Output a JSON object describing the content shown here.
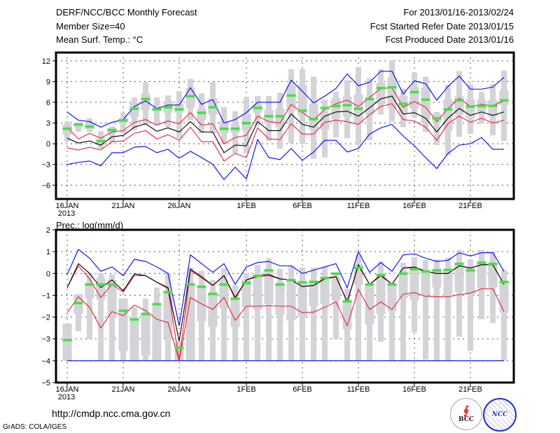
{
  "header": {
    "title": "DERF/NCC/BCC Monthly Forecast",
    "member_size": "Member Size=40",
    "variable": "Mean Surf. Temp.: °C",
    "period": "For 2013/01/16-2013/02/24",
    "started": "Fcst Started Refer Date 2013/01/15",
    "produced": "Fcst Produced Date 2013/01/16"
  },
  "footer": {
    "url": "http://cmdp.ncc.cma.gov.cn",
    "grads": "GrADS: COLA/IGES",
    "logo_bcc": "BCC",
    "logo_ncc": "NCC"
  },
  "colors": {
    "box": "#d3d3d8",
    "obs": "#44e044",
    "spread": "#e8203c",
    "extreme": "#0000ff",
    "mean": "#000000"
  },
  "chart_data": [
    {
      "type": "line",
      "title": "Mean Surf. Temp.: °C",
      "x_start": "16JAN 2013",
      "n_days": 40,
      "xticks": [
        {
          "day": 0,
          "label": "16JAN",
          "sub": "2013"
        },
        {
          "day": 5,
          "label": "21JAN"
        },
        {
          "day": 10,
          "label": "26JAN"
        },
        {
          "day": 16,
          "label": "1FEB"
        },
        {
          "day": 21,
          "label": "6FEB"
        },
        {
          "day": 26,
          "label": "11FEB"
        },
        {
          "day": 31,
          "label": "16FEB"
        },
        {
          "day": 36,
          "label": "21FEB"
        }
      ],
      "yticks": [
        12,
        9,
        6,
        3,
        0,
        -3,
        -6
      ],
      "ylim": [
        -8,
        13.2
      ],
      "grid": true,
      "series": [
        {
          "name": "max",
          "color": "#0000ff",
          "values": [
            4.6,
            3.4,
            3.2,
            2.4,
            3.1,
            3.5,
            5.4,
            6.2,
            5.1,
            5.6,
            5.6,
            8.1,
            5.7,
            6.4,
            3.0,
            3.5,
            4.5,
            6.0,
            6.0,
            6.0,
            9.2,
            7.6,
            5.9,
            6.9,
            8.0,
            10.1,
            8.4,
            8.9,
            10.5,
            10.5,
            7.2,
            9.1,
            8.7,
            6.3,
            8.3,
            9.8,
            7.9,
            7.9,
            8.2,
            9.6
          ]
        },
        {
          "name": "upper",
          "color": "#e8203c",
          "values": [
            2.4,
            0.7,
            1.5,
            0.8,
            1.7,
            1.9,
            3.1,
            3.5,
            2.7,
            3.3,
            2.9,
            4.5,
            2.7,
            2.9,
            0.0,
            0.9,
            1.2,
            4.0,
            3.2,
            3.0,
            5.7,
            4.5,
            3.4,
            5.0,
            5.8,
            6.3,
            5.4,
            6.7,
            8.0,
            8.1,
            5.3,
            6.1,
            5.3,
            3.2,
            5.1,
            6.6,
            5.4,
            5.7,
            5.5,
            6.2
          ]
        },
        {
          "name": "mean",
          "color": "#000000",
          "values": [
            0.8,
            0.1,
            0.4,
            -0.2,
            1.0,
            1.2,
            2.4,
            2.9,
            1.8,
            2.3,
            1.7,
            3.2,
            1.7,
            1.7,
            -1.3,
            -0.2,
            -0.3,
            3.2,
            1.9,
            1.9,
            4.3,
            2.8,
            2.4,
            4.0,
            4.6,
            4.7,
            4.0,
            5.2,
            6.5,
            6.9,
            4.3,
            4.5,
            3.7,
            1.7,
            3.7,
            5.1,
            4.1,
            4.6,
            4.1,
            4.6
          ]
        },
        {
          "name": "lower",
          "color": "#e8203c",
          "values": [
            -0.6,
            -0.9,
            -0.5,
            -0.9,
            0.3,
            0.4,
            1.5,
            1.9,
            0.7,
            1.3,
            0.5,
            2.4,
            0.3,
            0.3,
            -2.5,
            -1.4,
            -2.0,
            2.3,
            0.7,
            0.6,
            2.9,
            1.4,
            1.4,
            3.1,
            3.4,
            3.2,
            2.8,
            4.2,
            5.4,
            5.8,
            3.5,
            3.3,
            2.4,
            0.5,
            2.9,
            4.0,
            3.1,
            3.7,
            3.0,
            3.4
          ]
        },
        {
          "name": "min",
          "color": "#0000ff",
          "values": [
            -3.0,
            -2.7,
            -2.5,
            -3.2,
            -1.3,
            -1.3,
            -0.5,
            -0.4,
            -1.3,
            -0.8,
            -2.1,
            -1.1,
            -2.0,
            -3.0,
            -5.2,
            -3.4,
            -5.1,
            0.6,
            -2.0,
            -2.3,
            -0.7,
            -2.4,
            -1.2,
            0.5,
            0.5,
            -1.2,
            -0.7,
            1.4,
            2.3,
            2.8,
            1.1,
            -0.3,
            -2.0,
            -3.6,
            -1.4,
            -0.2,
            0.0,
            0.9,
            -0.8,
            -0.8
          ]
        }
      ],
      "obs": [
        2.2,
        2.8,
        2.5,
        0.4,
        2.0,
        3.4,
        5.1,
        6.5,
        5.0,
        5.3,
        5.0,
        6.9,
        4.5,
        5.3,
        2.2,
        2.2,
        3.0,
        5.2,
        4.0,
        4.0,
        7.0,
        4.8,
        3.6,
        5.2,
        5.5,
        5.6,
        5.1,
        6.5,
        8.1,
        8.2,
        5.8,
        7.5,
        6.4,
        3.7,
        5.0,
        6.3,
        5.4,
        5.5,
        5.5,
        6.3
      ],
      "box_outer": [
        [
          0.4,
          3.2
        ],
        [
          1.7,
          3.1
        ],
        [
          1.7,
          3.7
        ],
        [
          -0.7,
          1.8
        ],
        [
          0.2,
          2.5
        ],
        [
          1.5,
          4.5
        ],
        [
          2.0,
          6.7
        ],
        [
          2.7,
          8.9
        ],
        [
          2.7,
          6.7
        ],
        [
          2.4,
          7.0
        ],
        [
          0.8,
          7.6
        ],
        [
          3.4,
          9.4
        ],
        [
          1.5,
          7.3
        ],
        [
          1.5,
          8.9
        ],
        [
          -0.1,
          5.3
        ],
        [
          -1.4,
          4.7
        ],
        [
          -1.4,
          6.8
        ],
        [
          2.7,
          6.9
        ],
        [
          0.4,
          6.9
        ],
        [
          -0.7,
          7.4
        ],
        [
          0.1,
          10.8
        ],
        [
          0.0,
          10.8
        ],
        [
          -2.2,
          9.7
        ],
        [
          -2.0,
          6.4
        ],
        [
          0.9,
          7.5
        ],
        [
          0.8,
          9.2
        ],
        [
          -0.2,
          11.1
        ],
        [
          0.5,
          9.5
        ],
        [
          4.2,
          10.8
        ],
        [
          3.2,
          12.1
        ],
        [
          2.4,
          8.0
        ],
        [
          3.8,
          10.3
        ],
        [
          1.7,
          9.7
        ],
        [
          -0.2,
          4.6
        ],
        [
          -1.7,
          8.5
        ],
        [
          1.0,
          10.5
        ],
        [
          1.4,
          8.6
        ],
        [
          2.9,
          7.5
        ],
        [
          1.2,
          8.6
        ],
        [
          0.4,
          10.6
        ]
      ],
      "box_inner": [
        [
          1.3,
          2.8
        ],
        [
          2.4,
          3.0
        ],
        [
          2.1,
          3.1
        ],
        [
          -0.2,
          0.7
        ],
        [
          1.5,
          2.3
        ],
        [
          3.0,
          3.7
        ],
        [
          3.9,
          5.9
        ],
        [
          4.9,
          7.3
        ],
        [
          4.7,
          5.3
        ],
        [
          4.5,
          6.2
        ],
        [
          4.5,
          5.7
        ],
        [
          5.2,
          8.1
        ],
        [
          3.4,
          5.1
        ],
        [
          4.2,
          6.6
        ],
        [
          1.5,
          3.2
        ],
        [
          1.6,
          2.8
        ],
        [
          1.9,
          4.3
        ],
        [
          4.5,
          5.7
        ],
        [
          2.9,
          4.9
        ],
        [
          2.4,
          5.1
        ],
        [
          4.7,
          8.5
        ],
        [
          4.1,
          8.5
        ],
        [
          2.0,
          5.8
        ],
        [
          2.0,
          4.4
        ],
        [
          3.6,
          6.6
        ],
        [
          3.9,
          6.8
        ],
        [
          3.0,
          7.1
        ],
        [
          4.2,
          6.3
        ],
        [
          5.8,
          8.8
        ],
        [
          5.1,
          9.6
        ],
        [
          4.4,
          6.9
        ],
        [
          5.1,
          8.3
        ],
        [
          3.0,
          8.1
        ],
        [
          3.1,
          4.3
        ],
        [
          1.9,
          6.4
        ],
        [
          4.2,
          6.9
        ],
        [
          3.7,
          6.4
        ],
        [
          4.6,
          6.4
        ],
        [
          3.9,
          6.3
        ],
        [
          5.6,
          7.8
        ]
      ]
    },
    {
      "type": "line",
      "title": "Prec.: log(mm/d)",
      "x_start": "16JAN 2013",
      "n_days": 40,
      "xticks": [
        {
          "day": 0,
          "label": "16JAN",
          "sub": "2013"
        },
        {
          "day": 5,
          "label": "21JAN"
        },
        {
          "day": 10,
          "label": "26JAN"
        },
        {
          "day": 16,
          "label": "1FEB"
        },
        {
          "day": 21,
          "label": "6FEB"
        },
        {
          "day": 26,
          "label": "11FEB"
        },
        {
          "day": 31,
          "label": "16FEB"
        },
        {
          "day": 36,
          "label": "21FEB"
        }
      ],
      "yticks": [
        2,
        1,
        0,
        -1,
        -2,
        -3,
        -4,
        -5
      ],
      "ylim": [
        -5,
        2
      ],
      "grid": true,
      "series": [
        {
          "name": "max",
          "color": "#0000ff",
          "values": [
            -0.05,
            1.1,
            0.7,
            0.1,
            0.3,
            -0.1,
            0.65,
            0.55,
            0.3,
            0.0,
            -2.4,
            0.85,
            0.45,
            0.05,
            0.45,
            -0.5,
            0.3,
            0.5,
            0.55,
            0.35,
            0.35,
            0.0,
            0.15,
            0.3,
            0.45,
            -0.65,
            1.0,
            0.05,
            0.5,
            0.1,
            0.85,
            0.9,
            0.7,
            0.55,
            0.6,
            0.95,
            0.8,
            0.95,
            0.95,
            0.1
          ]
        },
        {
          "name": "upper",
          "color": "#e8203c",
          "values": [
            -0.65,
            0.35,
            -0.25,
            -1.1,
            -0.5,
            -0.85,
            -0.1,
            -0.1,
            -0.4,
            -0.7,
            -4.0,
            0.15,
            -0.2,
            -0.55,
            -0.1,
            -1.15,
            -0.3,
            -0.15,
            -0.1,
            -0.25,
            -0.3,
            -0.6,
            -0.55,
            -0.2,
            -0.15,
            -1.3,
            0.35,
            -0.5,
            -0.05,
            -0.5,
            0.25,
            0.25,
            0.1,
            0.0,
            0.0,
            0.35,
            0.25,
            0.4,
            0.4,
            -0.5
          ]
        },
        {
          "name": "mean",
          "color": "#000000",
          "values": [
            -0.65,
            0.45,
            0.0,
            -0.65,
            -0.3,
            -0.8,
            -0.02,
            -0.1,
            -0.4,
            -0.65,
            -3.1,
            0.2,
            -0.15,
            -0.55,
            -0.1,
            -1.1,
            -0.3,
            -0.1,
            -0.05,
            -0.25,
            -0.3,
            -0.6,
            -0.55,
            -0.25,
            -0.15,
            -1.3,
            0.4,
            -0.5,
            -0.1,
            -0.5,
            0.25,
            0.3,
            0.1,
            0.0,
            0.0,
            0.35,
            0.25,
            0.4,
            0.4,
            -0.5
          ]
        },
        {
          "name": "lower",
          "color": "#e8203c",
          "values": [
            -1.8,
            -1.07,
            -1.55,
            -2.5,
            -1.75,
            -1.93,
            -1.45,
            -1.7,
            -2.1,
            -2.25,
            -4.0,
            -1.1,
            -1.4,
            -1.65,
            -1.1,
            -2.15,
            -1.5,
            -1.5,
            -1.48,
            -1.5,
            -1.5,
            -1.8,
            -1.77,
            -1.55,
            -1.3,
            -2.4,
            -0.73,
            -1.65,
            -1.3,
            -1.65,
            -0.95,
            -0.88,
            -1.05,
            -1.07,
            -1.07,
            -0.97,
            -0.9,
            -0.7,
            -0.7,
            -1.75
          ]
        },
        {
          "name": "min",
          "color": "#0000ff",
          "values": [
            -4,
            -4,
            -4,
            -4,
            -4,
            -4,
            -4,
            -4,
            -4,
            -4,
            -4,
            -4,
            -4,
            -4,
            -4,
            -4,
            -4,
            -4,
            -4,
            -4,
            -4,
            -4,
            -4,
            -4,
            -4,
            -4,
            -4,
            -4,
            -4,
            -4,
            -4,
            -4,
            -4,
            -4,
            -4,
            -4,
            -4,
            -4,
            -4,
            -4
          ]
        }
      ],
      "obs": [
        -3.05,
        -1.35,
        -0.5,
        -0.5,
        -0.5,
        -1.7,
        -2.1,
        -1.85,
        -1.4,
        -0.85,
        -3.4,
        -0.5,
        -0.6,
        -0.93,
        -0.5,
        -1.15,
        -0.43,
        -0.1,
        0.15,
        -0.5,
        -0.3,
        -0.4,
        -0.38,
        -0.2,
        0.0,
        -1.27,
        0.27,
        -0.5,
        -0.07,
        -0.5,
        0.0,
        0.2,
        0.1,
        0.15,
        0.17,
        0.45,
        0.15,
        0.5,
        0.45,
        -0.38
      ],
      "box_outer": [
        [
          -4.0,
          -2.3
        ],
        [
          -2.65,
          -0.95
        ],
        [
          -3.0,
          0.02
        ],
        [
          -4.0,
          0.02
        ],
        [
          -4.0,
          -0.05
        ],
        [
          -4.0,
          -1.15
        ],
        [
          -4.0,
          -1.55
        ],
        [
          -4.0,
          -1.15
        ],
        [
          -4.0,
          -0.65
        ],
        [
          -4.0,
          0.0
        ],
        [
          -4.0,
          -3.1
        ],
        [
          -4.0,
          0.27
        ],
        [
          -4.0,
          0.13
        ],
        [
          -4.0,
          -0.3
        ],
        [
          -4.0,
          0.23
        ],
        [
          -4.0,
          -0.55
        ],
        [
          -4.0,
          0.02
        ],
        [
          -4.0,
          0.4
        ],
        [
          -4.0,
          0.7
        ],
        [
          -4.0,
          0.2
        ],
        [
          -4.0,
          0.35
        ],
        [
          -4.0,
          0.27
        ],
        [
          -4.0,
          0.27
        ],
        [
          -4.0,
          0.3
        ],
        [
          -3.0,
          -0.05
        ],
        [
          -4.0,
          -0.7
        ],
        [
          -4.0,
          0.85
        ],
        [
          -4.0,
          -0.43
        ],
        [
          -3.13,
          0.55
        ],
        [
          -4.0,
          -0.48
        ],
        [
          -4.0,
          0.48
        ],
        [
          -2.7,
          0.75
        ],
        [
          -3.95,
          0.62
        ],
        [
          -4.0,
          0.64
        ],
        [
          -4.0,
          0.72
        ],
        [
          -2.9,
          1.07
        ],
        [
          -3.55,
          0.64
        ],
        [
          -2.1,
          1.07
        ],
        [
          -2.27,
          1.02
        ],
        [
          -4.0,
          0.16
        ]
      ],
      "box_inner": [
        [
          -4.0,
          -2.3
        ],
        [
          -1.85,
          -0.95
        ],
        [
          -1.13,
          -0.43
        ],
        [
          -1.2,
          -0.2
        ],
        [
          -2.05,
          -0.3
        ],
        [
          -3.55,
          -1.15
        ],
        [
          -4.0,
          -2.05
        ],
        [
          -3.75,
          -1.8
        ],
        [
          -4.0,
          -1.4
        ],
        [
          -3.0,
          -0.85
        ],
        [
          -4.0,
          -3.2
        ],
        [
          -4.0,
          -0.5
        ],
        [
          -2.2,
          -0.55
        ],
        [
          -2.45,
          -0.85
        ],
        [
          -1.6,
          -0.3
        ],
        [
          -2.45,
          -1.1
        ],
        [
          -1.55,
          -0.3
        ],
        [
          -1.65,
          -0.05
        ],
        [
          -1.4,
          0.2
        ],
        [
          -1.9,
          -0.43
        ],
        [
          -2.15,
          -0.3
        ],
        [
          -1.98,
          -0.38
        ],
        [
          -1.5,
          -0.3
        ],
        [
          -1.4,
          -0.27
        ],
        [
          -1.23,
          -0.13
        ],
        [
          -2.57,
          -1.3
        ],
        [
          -0.53,
          0.43
        ],
        [
          -2.33,
          -0.55
        ],
        [
          -1.87,
          0.0
        ],
        [
          -1.73,
          -0.5
        ],
        [
          -1.13,
          0.1
        ],
        [
          -1.23,
          0.27
        ],
        [
          -0.97,
          0.1
        ],
        [
          -0.64,
          0.1
        ],
        [
          -0.97,
          0.16
        ],
        [
          -0.84,
          0.48
        ],
        [
          -0.97,
          0.27
        ],
        [
          -0.66,
          0.56
        ],
        [
          -0.64,
          0.48
        ],
        [
          -1.8,
          -0.43
        ]
      ]
    }
  ]
}
